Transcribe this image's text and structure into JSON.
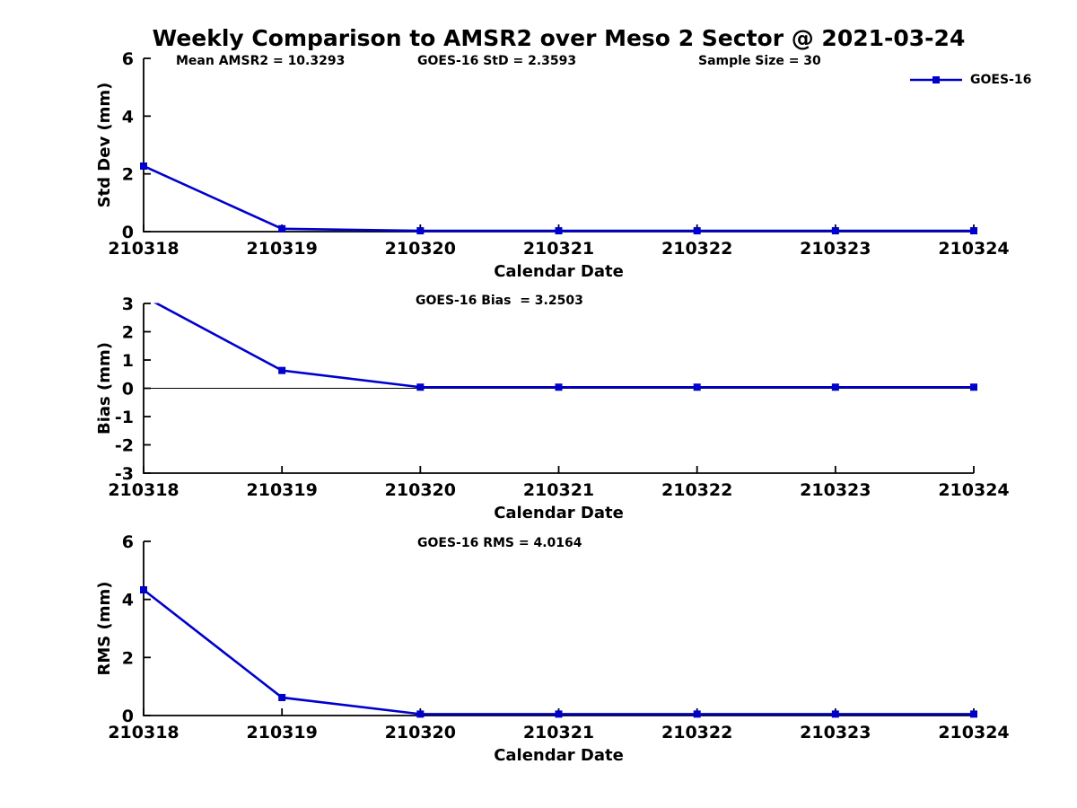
{
  "title": "Weekly Comparison to AMSR2 over Meso 2 Sector @ 2021-03-24",
  "colors": {
    "line": "#0000cd",
    "axis": "#000000",
    "text": "#000000"
  },
  "chart_data": [
    {
      "type": "line",
      "name": "std-dev",
      "title": "",
      "annotations": [
        "Mean AMSR2 = 10.3293",
        "GOES-16 StD = 2.3593",
        "Sample Size = 30"
      ],
      "legend": "GOES-16",
      "legend_position": "top-right",
      "categories": [
        "210318",
        "210319",
        "210320",
        "210321",
        "210322",
        "210323",
        "210324"
      ],
      "series": [
        {
          "name": "GOES-16",
          "values": [
            2.27,
            0.1,
            0.03,
            0.03,
            0.03,
            0.03,
            0.03
          ]
        }
      ],
      "xlabel": "Calendar Date",
      "ylabel": "Std Dev (mm)",
      "ylim": [
        0,
        6
      ],
      "yticks": [
        0,
        2,
        4,
        6
      ],
      "zero_line": false,
      "grid": false,
      "marker": "square"
    },
    {
      "type": "line",
      "name": "bias",
      "annotation": "GOES-16 Bias  = 3.2503",
      "categories": [
        "210318",
        "210319",
        "210320",
        "210321",
        "210322",
        "210323",
        "210324"
      ],
      "series": [
        {
          "name": "GOES-16",
          "values": [
            3.2503,
            0.63,
            0.04,
            0.04,
            0.04,
            0.04,
            0.04
          ]
        }
      ],
      "xlabel": "Calendar Date",
      "ylabel": "Bias (mm)",
      "ylim": [
        -3,
        3
      ],
      "yticks": [
        3,
        2,
        1,
        0,
        -1,
        -2,
        -3
      ],
      "zero_line": true,
      "grid": false,
      "marker": "square",
      "note_first_point_clipped_above_ymax": true
    },
    {
      "type": "line",
      "name": "rms",
      "annotation": "GOES-16 RMS = 4.0164",
      "categories": [
        "210318",
        "210319",
        "210320",
        "210321",
        "210322",
        "210323",
        "210324"
      ],
      "series": [
        {
          "name": "GOES-16",
          "values": [
            4.33,
            0.62,
            0.05,
            0.05,
            0.05,
            0.05,
            0.05
          ]
        }
      ],
      "xlabel": "Calendar Date",
      "ylabel": "RMS (mm)",
      "ylim": [
        0,
        6
      ],
      "yticks": [
        0,
        2,
        4,
        6
      ],
      "zero_line": false,
      "grid": false,
      "marker": "square"
    }
  ]
}
